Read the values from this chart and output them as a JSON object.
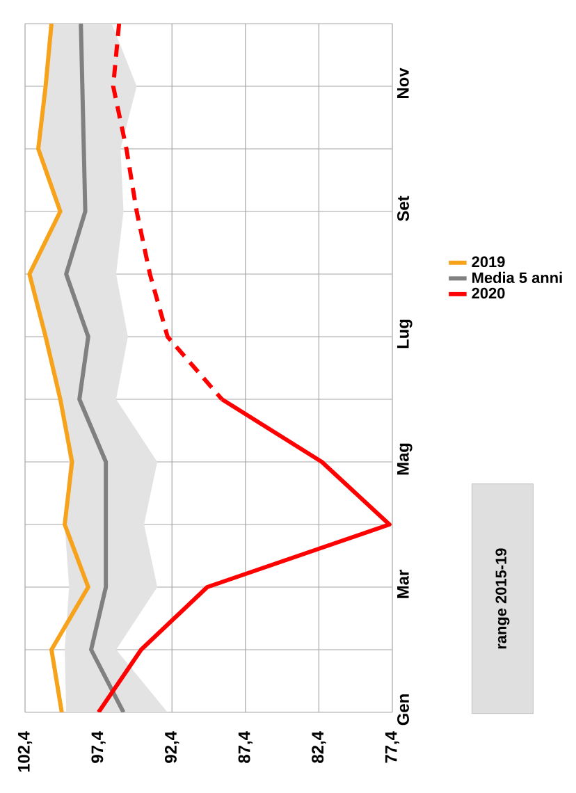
{
  "chart_data": {
    "type": "line",
    "orientation": "horizontal",
    "categories": [
      null,
      "Nov",
      null,
      "Set",
      null,
      "Lug",
      null,
      "Mag",
      null,
      "Mar",
      null,
      "Gen"
    ],
    "series": [
      {
        "name": "2019",
        "color": "#f7a21b",
        "values": [
          100.6,
          101.0,
          101.5,
          100.0,
          102.1,
          101.0,
          100.0,
          99.2,
          99.7,
          98.1,
          100.6,
          99.9
        ]
      },
      {
        "name": "Media 5 anni",
        "color": "#808080",
        "values": [
          98.6,
          98.5,
          98.4,
          98.3,
          99.6,
          98.1,
          98.7,
          96.9,
          96.9,
          96.9,
          97.9,
          95.7
        ],
        "lower": [
          96.5,
          94.8,
          95.9,
          95.7,
          96.2,
          95.4,
          96.2,
          93.4,
          94.3,
          93.4,
          96.2,
          92.7
        ],
        "upper": [
          100.6,
          101.0,
          101.5,
          100.0,
          102.1,
          101.0,
          100.0,
          99.4,
          99.7,
          99.4,
          99.7,
          99.6
        ]
      },
      {
        "name": "2020",
        "color": "#ff0000",
        "values": [
          null,
          null,
          null,
          null,
          null,
          null,
          89.0,
          82.2,
          77.6,
          90.0,
          94.5,
          97.4
        ]
      },
      {
        "color": "#ff0000",
        "line_style": "dashed",
        "values": [
          96.0,
          96.4,
          95.5,
          94.8,
          93.9,
          92.7,
          89.0,
          null,
          null,
          null,
          null,
          null
        ]
      }
    ],
    "xlim": [
      102.4,
      77.4
    ],
    "xticks": [
      {
        "value": 102.4,
        "label": "102,4"
      },
      {
        "value": 97.4,
        "label": "97,4"
      },
      {
        "value": 92.4,
        "label": "92,4"
      },
      {
        "value": 87.4,
        "label": "87,4"
      },
      {
        "value": 82.4,
        "label": "82,4"
      },
      {
        "value": 77.4,
        "label": "77,4"
      }
    ],
    "grid": true,
    "legend": "right",
    "annotations": [
      "range 2015-19"
    ]
  }
}
